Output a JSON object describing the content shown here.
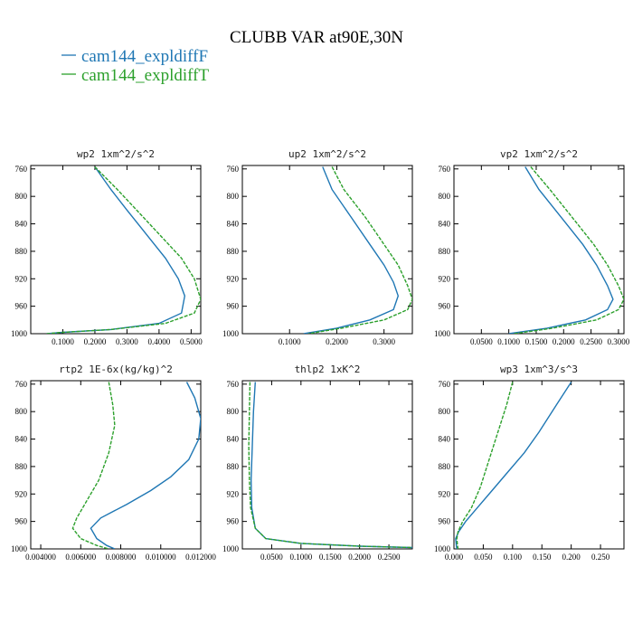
{
  "figure": {
    "title": "CLUBB VAR at90E,30N",
    "legend": [
      {
        "name": "cam144_expldiffF",
        "color": "#1f77b4"
      },
      {
        "name": "cam144_expldiffT",
        "color": "#2ca02c"
      }
    ]
  },
  "chart_data": [
    {
      "type": "line",
      "title": "wp2  1xm^2/s^2",
      "xlim": [
        0,
        0.53
      ],
      "ylim": [
        1000,
        755
      ],
      "inverted_y": true,
      "xticks": [
        0.1,
        0.2,
        0.3,
        0.4,
        0.5
      ],
      "xtick_labels": [
        "0.1000",
        "0.2000",
        "0.3000",
        "0.4000",
        "0.5000"
      ],
      "yticks": [
        760,
        800,
        840,
        880,
        920,
        960,
        1000
      ],
      "series": [
        {
          "name": "cam144_expldiffF",
          "points": [
            [
              0.2,
              757
            ],
            [
              0.25,
              790
            ],
            [
              0.3,
              820
            ],
            [
              0.36,
              855
            ],
            [
              0.42,
              890
            ],
            [
              0.46,
              920
            ],
            [
              0.48,
              945
            ],
            [
              0.47,
              970
            ],
            [
              0.4,
              985
            ],
            [
              0.25,
              994
            ],
            [
              0.1,
              998
            ],
            [
              0.05,
              1000
            ]
          ]
        },
        {
          "name": "cam144_expldiffT",
          "points": [
            [
              0.2,
              757
            ],
            [
              0.27,
              790
            ],
            [
              0.33,
              820
            ],
            [
              0.4,
              855
            ],
            [
              0.47,
              890
            ],
            [
              0.51,
              920
            ],
            [
              0.53,
              950
            ],
            [
              0.51,
              970
            ],
            [
              0.42,
              985
            ],
            [
              0.25,
              994
            ],
            [
              0.1,
              998
            ],
            [
              0.05,
              1000
            ]
          ]
        }
      ]
    },
    {
      "type": "line",
      "title": "up2  1xm^2/s^2",
      "xlim": [
        0,
        0.36
      ],
      "ylim": [
        1000,
        755
      ],
      "inverted_y": true,
      "xticks": [
        0.1,
        0.2,
        0.3
      ],
      "xtick_labels": [
        "0.1000",
        "0.2000",
        "0.3000"
      ],
      "yticks": [
        760,
        800,
        840,
        880,
        920,
        960,
        1000
      ],
      "series": [
        {
          "name": "cam144_expldiffF",
          "points": [
            [
              0.17,
              757
            ],
            [
              0.19,
              790
            ],
            [
              0.23,
              830
            ],
            [
              0.27,
              870
            ],
            [
              0.3,
              900
            ],
            [
              0.32,
              925
            ],
            [
              0.33,
              945
            ],
            [
              0.32,
              965
            ],
            [
              0.27,
              980
            ],
            [
              0.2,
              992
            ],
            [
              0.13,
              1000
            ]
          ]
        },
        {
          "name": "cam144_expldiffT",
          "points": [
            [
              0.19,
              757
            ],
            [
              0.215,
              790
            ],
            [
              0.26,
              830
            ],
            [
              0.3,
              870
            ],
            [
              0.33,
              900
            ],
            [
              0.35,
              930
            ],
            [
              0.36,
              950
            ],
            [
              0.35,
              965
            ],
            [
              0.3,
              980
            ],
            [
              0.21,
              992
            ],
            [
              0.14,
              1000
            ]
          ]
        }
      ]
    },
    {
      "type": "line",
      "title": "vp2  1xm^2/s^2",
      "xlim": [
        0,
        0.31
      ],
      "ylim": [
        1000,
        755
      ],
      "inverted_y": true,
      "xticks": [
        0.05,
        0.1,
        0.15,
        0.2,
        0.25,
        0.3
      ],
      "xtick_labels": [
        "0.0500",
        "0.1000",
        "0.1500",
        "0.2000",
        "0.2500",
        "0.3000"
      ],
      "yticks": [
        760,
        800,
        840,
        880,
        920,
        960,
        1000
      ],
      "series": [
        {
          "name": "cam144_expldiffF",
          "points": [
            [
              0.13,
              757
            ],
            [
              0.155,
              790
            ],
            [
              0.195,
              830
            ],
            [
              0.235,
              870
            ],
            [
              0.26,
              900
            ],
            [
              0.28,
              930
            ],
            [
              0.29,
              950
            ],
            [
              0.28,
              965
            ],
            [
              0.24,
              980
            ],
            [
              0.17,
              992
            ],
            [
              0.1,
              1000
            ]
          ]
        },
        {
          "name": "cam144_expldiffT",
          "points": [
            [
              0.14,
              757
            ],
            [
              0.175,
              790
            ],
            [
              0.215,
              830
            ],
            [
              0.255,
              870
            ],
            [
              0.28,
              900
            ],
            [
              0.3,
              930
            ],
            [
              0.31,
              950
            ],
            [
              0.3,
              965
            ],
            [
              0.26,
              980
            ],
            [
              0.18,
              992
            ],
            [
              0.11,
              1000
            ]
          ]
        }
      ]
    },
    {
      "type": "line",
      "title": "rtp2  1E-6x(kg/kg)^2",
      "xlim": [
        0.0035,
        0.012
      ],
      "ylim": [
        1000,
        755
      ],
      "inverted_y": true,
      "xticks": [
        0.004,
        0.006,
        0.008,
        0.01,
        0.012
      ],
      "xtick_labels": [
        "0.004000",
        "0.006000",
        "0.008000",
        "0.010000",
        "0.012000"
      ],
      "yticks": [
        760,
        800,
        840,
        880,
        920,
        960,
        1000
      ],
      "series": [
        {
          "name": "cam144_expldiffF",
          "points": [
            [
              0.0113,
              757
            ],
            [
              0.0117,
              780
            ],
            [
              0.012,
              810
            ],
            [
              0.0119,
              840
            ],
            [
              0.0114,
              870
            ],
            [
              0.0105,
              895
            ],
            [
              0.0095,
              915
            ],
            [
              0.0083,
              935
            ],
            [
              0.007,
              955
            ],
            [
              0.0065,
              970
            ],
            [
              0.0068,
              985
            ],
            [
              0.0073,
              995
            ],
            [
              0.0077,
              1000
            ]
          ]
        },
        {
          "name": "cam144_expldiffT",
          "points": [
            [
              0.0074,
              757
            ],
            [
              0.0076,
              790
            ],
            [
              0.0077,
              820
            ],
            [
              0.0074,
              860
            ],
            [
              0.0069,
              900
            ],
            [
              0.0063,
              930
            ],
            [
              0.0058,
              955
            ],
            [
              0.0056,
              970
            ],
            [
              0.006,
              985
            ],
            [
              0.0068,
              995
            ],
            [
              0.0074,
              1000
            ]
          ]
        }
      ]
    },
    {
      "type": "line",
      "title": "thlp2  1xK^2",
      "xlim": [
        0,
        0.29
      ],
      "ylim": [
        1000,
        755
      ],
      "inverted_y": true,
      "xticks": [
        0.05,
        0.1,
        0.15,
        0.2,
        0.25
      ],
      "xtick_labels": [
        "0.0500",
        "0.1000",
        "0.1500",
        "0.2000",
        "0.2500"
      ],
      "yticks": [
        760,
        800,
        840,
        880,
        920,
        960,
        1000
      ],
      "series": [
        {
          "name": "cam144_expldiffF",
          "points": [
            [
              0.022,
              757
            ],
            [
              0.019,
              800
            ],
            [
              0.017,
              850
            ],
            [
              0.015,
              900
            ],
            [
              0.016,
              940
            ],
            [
              0.022,
              970
            ],
            [
              0.04,
              985
            ],
            [
              0.1,
              992
            ],
            [
              0.2,
              996
            ],
            [
              0.29,
              998
            ]
          ]
        },
        {
          "name": "cam144_expldiffT",
          "points": [
            [
              0.013,
              757
            ],
            [
              0.012,
              800
            ],
            [
              0.011,
              850
            ],
            [
              0.012,
              900
            ],
            [
              0.014,
              940
            ],
            [
              0.022,
              970
            ],
            [
              0.04,
              985
            ],
            [
              0.1,
              992
            ],
            [
              0.2,
              996
            ],
            [
              0.29,
              998
            ]
          ]
        }
      ]
    },
    {
      "type": "line",
      "title": "wp3  1xm^3/s^3",
      "xlim": [
        0,
        0.29
      ],
      "ylim": [
        1000,
        755
      ],
      "inverted_y": true,
      "xticks": [
        0,
        0.05,
        0.1,
        0.15,
        0.2,
        0.25
      ],
      "xtick_labels": [
        "0.000",
        "0.050",
        "0.100",
        "0.150",
        "0.200",
        "0.250"
      ],
      "yticks": [
        760,
        800,
        840,
        880,
        920,
        960,
        1000
      ],
      "series": [
        {
          "name": "cam144_expldiffF",
          "points": [
            [
              0.2,
              757
            ],
            [
              0.175,
              790
            ],
            [
              0.145,
              830
            ],
            [
              0.12,
              860
            ],
            [
              0.09,
              890
            ],
            [
              0.065,
              915
            ],
            [
              0.04,
              940
            ],
            [
              0.02,
              960
            ],
            [
              0.008,
              975
            ],
            [
              0.003,
              985
            ],
            [
              0.004,
              995
            ],
            [
              0.005,
              1000
            ]
          ]
        },
        {
          "name": "cam144_expldiffT",
          "points": [
            [
              0.1,
              757
            ],
            [
              0.09,
              790
            ],
            [
              0.075,
              830
            ],
            [
              0.06,
              870
            ],
            [
              0.045,
              910
            ],
            [
              0.03,
              940
            ],
            [
              0.015,
              960
            ],
            [
              0.007,
              975
            ],
            [
              0.005,
              985
            ],
            [
              0.006,
              995
            ],
            [
              0.007,
              1000
            ]
          ]
        }
      ]
    }
  ]
}
